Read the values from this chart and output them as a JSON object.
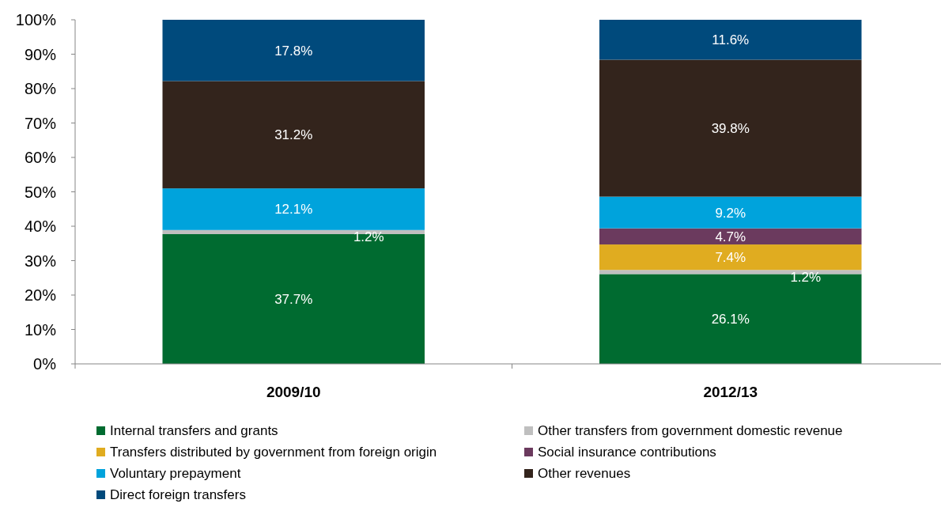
{
  "chart_data": {
    "type": "bar",
    "stacked": true,
    "categories": [
      "2009/10",
      "2012/13"
    ],
    "ylim": [
      0,
      100
    ],
    "yticks": [
      {
        "value": 0,
        "label": "0%"
      },
      {
        "value": 10,
        "label": "10%"
      },
      {
        "value": 20,
        "label": "20%"
      },
      {
        "value": 30,
        "label": "30%"
      },
      {
        "value": 40,
        "label": "40%"
      },
      {
        "value": 50,
        "label": "50%"
      },
      {
        "value": 60,
        "label": "60%"
      },
      {
        "value": 70,
        "label": "70%"
      },
      {
        "value": 80,
        "label": "80%"
      },
      {
        "value": 90,
        "label": "90%"
      },
      {
        "value": 100,
        "label": "100%"
      }
    ],
    "legend": "bottom",
    "grid": false,
    "series": [
      {
        "name": "Internal transfers and grants",
        "color": "#006b30",
        "values": [
          37.7,
          26.1
        ],
        "value_labels": [
          "37.7%",
          "26.1%"
        ]
      },
      {
        "name": "Other transfers from government domestic revenue",
        "color": "#bfbfbf",
        "values": [
          1.2,
          1.2
        ],
        "value_labels": [
          "1.2%",
          "1.2%"
        ]
      },
      {
        "name": "Transfers distributed by government from foreign origin",
        "color": "#e0ac20",
        "values": [
          0,
          7.4
        ],
        "value_labels": [
          null,
          "7.4%"
        ]
      },
      {
        "name": "Social insurance contributions",
        "color": "#6b3a5e",
        "values": [
          0,
          4.7
        ],
        "value_labels": [
          null,
          "4.7%"
        ]
      },
      {
        "name": "Voluntary prepayment",
        "color": "#00a3dc",
        "values": [
          12.1,
          9.2
        ],
        "value_labels": [
          "12.1%",
          "9.2%"
        ]
      },
      {
        "name": "Other revenues",
        "color": "#33241c",
        "values": [
          31.2,
          39.8
        ],
        "value_labels": [
          "31.2%",
          "39.8%"
        ]
      },
      {
        "name": "Direct foreign transfers",
        "color": "#004a7c",
        "values": [
          17.8,
          11.6
        ],
        "value_labels": [
          "17.8%",
          "11.6%"
        ]
      }
    ]
  }
}
